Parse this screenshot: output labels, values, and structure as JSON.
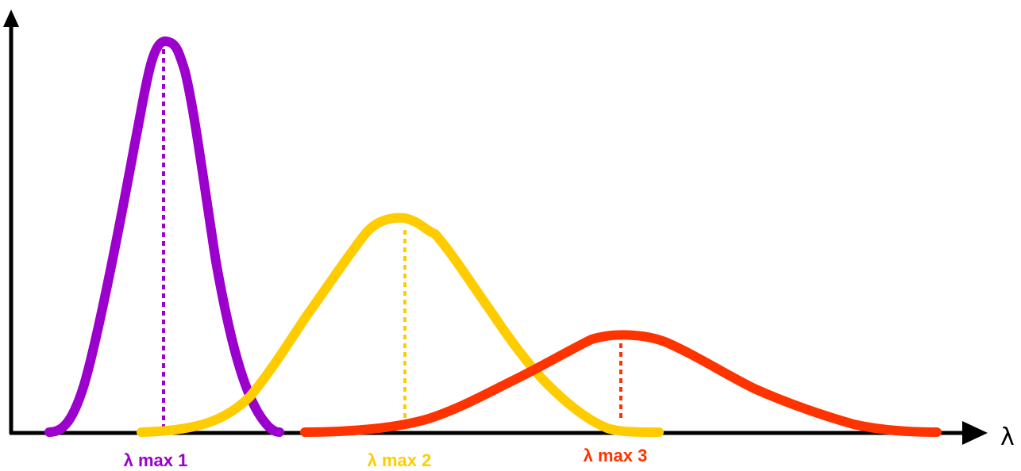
{
  "chart_data": {
    "type": "line",
    "title": "",
    "xlabel": "λ",
    "ylabel": "",
    "grid": false,
    "legend": "none",
    "series": [
      {
        "label": "λ max 1",
        "color": "#9B00CC",
        "peak_height": 1.0,
        "peak_position": 0.16,
        "width": "narrow"
      },
      {
        "label": "λ max 2",
        "color": "#FFCC00",
        "peak_height": 0.55,
        "peak_position": 0.41,
        "width": "medium"
      },
      {
        "label": "λ max 3",
        "color": "#FF3300",
        "peak_height": 0.26,
        "peak_position": 0.63,
        "width": "wide"
      }
    ]
  }
}
